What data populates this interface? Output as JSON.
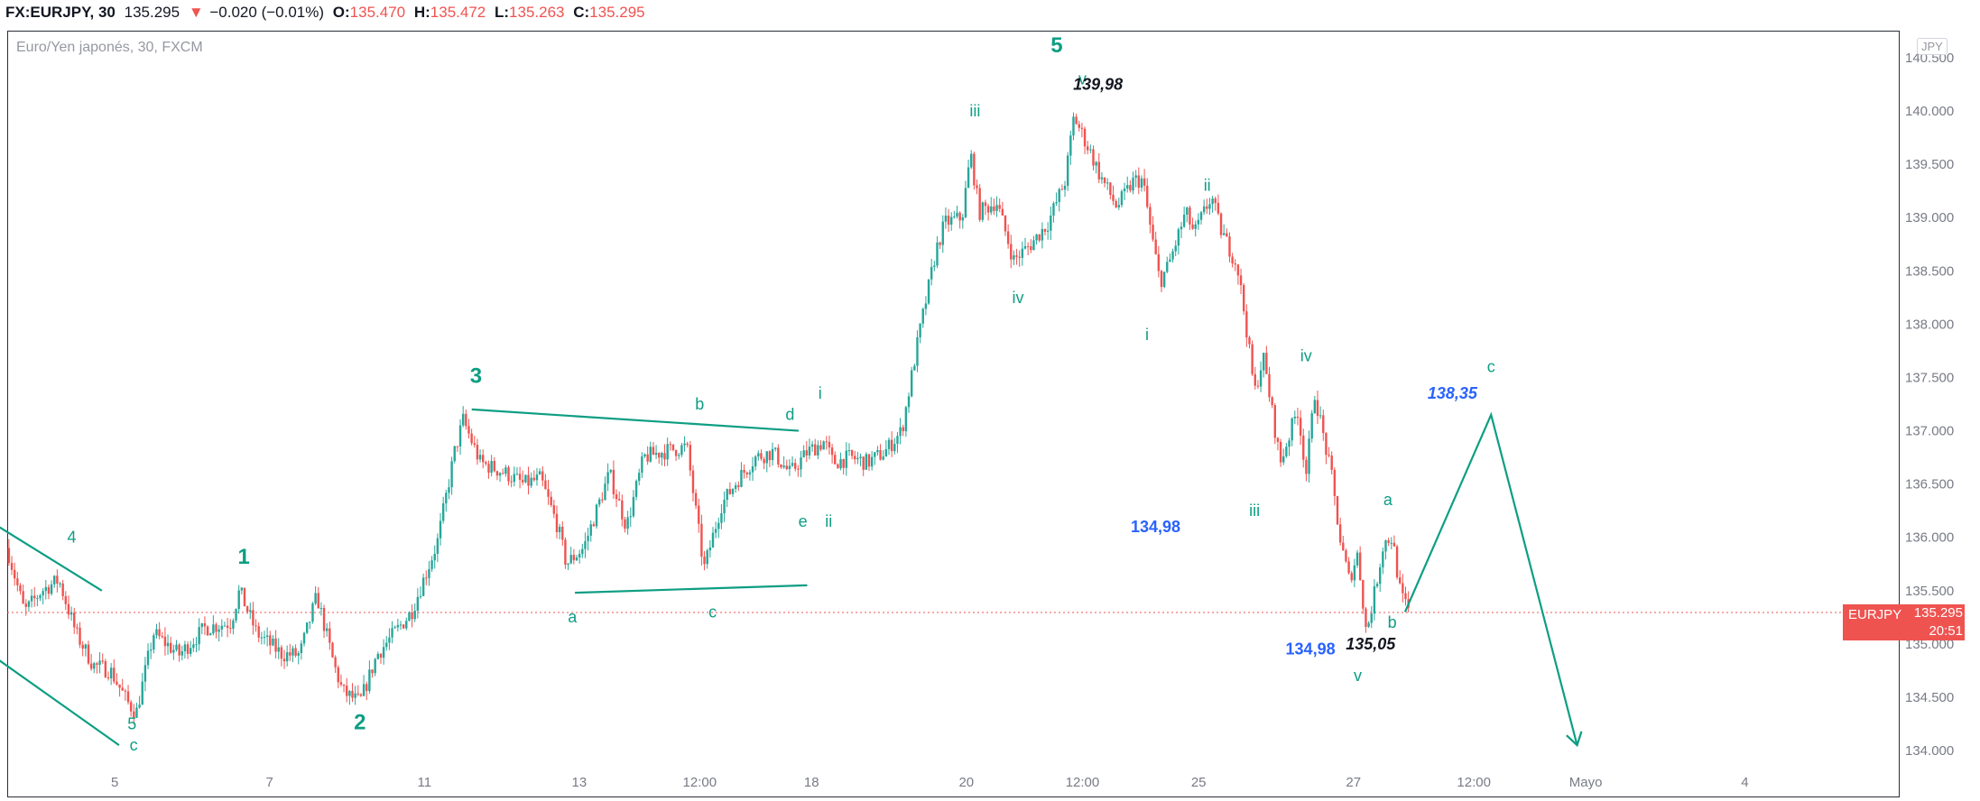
{
  "header": {
    "symbol": "FX:EURJPY, 30",
    "last": "135.295",
    "arrow": "▼",
    "change": "−0.020 (−0.01%)",
    "o_label": "O:",
    "o_value": "135.470",
    "h_label": "H:",
    "h_value": "135.472",
    "l_label": "L:",
    "l_value": "135.263",
    "c_label": "C:",
    "c_value": "135.295"
  },
  "watermark": "Euro/Yen japonés, 30, FXCM",
  "currency_badge": "JPY",
  "price_tag": {
    "symbol": "EURJPY",
    "value": "135.295",
    "countdown": "20:51"
  },
  "colors": {
    "up": "#26a69a",
    "down": "#ef5350",
    "wave": "#0d9e83",
    "note_blue": "#2962ff"
  },
  "chart_data": {
    "type": "candlestick",
    "title": "Euro/Yen japonés, 30, FXCM",
    "ylim": [
      133.7,
      140.7
    ],
    "yticks": [
      "134.000",
      "134.500",
      "135.000",
      "135.500",
      "136.000",
      "136.500",
      "137.000",
      "137.500",
      "138.000",
      "138.500",
      "139.000",
      "139.500",
      "140.000",
      "140.500"
    ],
    "ytick_values": [
      134.0,
      134.5,
      135.0,
      135.5,
      136.0,
      136.5,
      137.0,
      137.5,
      138.0,
      138.5,
      139.0,
      139.5,
      140.0,
      140.5
    ],
    "xlim": [
      0,
      220
    ],
    "xticks": [
      {
        "label": "5",
        "t": 12.5
      },
      {
        "label": "7",
        "t": 30.5
      },
      {
        "label": "11",
        "t": 48.5
      },
      {
        "label": "13",
        "t": 66.5
      },
      {
        "label": "12:00",
        "t": 80.5
      },
      {
        "label": "18",
        "t": 93.5
      },
      {
        "label": "20",
        "t": 111.5
      },
      {
        "label": "12:00",
        "t": 125
      },
      {
        "label": "25",
        "t": 138.5
      },
      {
        "label": "27",
        "t": 156.5
      },
      {
        "label": "12:00",
        "t": 170.5
      },
      {
        "label": "Mayo",
        "t": 183.5
      },
      {
        "label": "4",
        "t": 202
      }
    ],
    "last_price": 135.295,
    "anchors": [
      [
        0,
        135.9
      ],
      [
        2,
        135.3
      ],
      [
        4,
        135.5
      ],
      [
        6,
        135.6
      ],
      [
        8,
        135.1
      ],
      [
        10,
        134.8
      ],
      [
        12,
        134.75
      ],
      [
        14,
        134.45
      ],
      [
        15,
        134.35
      ],
      [
        17,
        135.1
      ],
      [
        20,
        134.9
      ],
      [
        23,
        135.15
      ],
      [
        26,
        135.2
      ],
      [
        27,
        135.5
      ],
      [
        29,
        135.1
      ],
      [
        32,
        134.9
      ],
      [
        34,
        134.9
      ],
      [
        36,
        135.45
      ],
      [
        38,
        134.8
      ],
      [
        39,
        134.55
      ],
      [
        41,
        134.45
      ],
      [
        43,
        134.9
      ],
      [
        45,
        135.1
      ],
      [
        47,
        135.3
      ],
      [
        50,
        135.95
      ],
      [
        52,
        136.8
      ],
      [
        53,
        137.1
      ],
      [
        55,
        136.7
      ],
      [
        58,
        136.6
      ],
      [
        60,
        136.5
      ],
      [
        62,
        136.55
      ],
      [
        64,
        136.1
      ],
      [
        65,
        135.75
      ],
      [
        67,
        135.9
      ],
      [
        70,
        136.6
      ],
      [
        72,
        136.1
      ],
      [
        74,
        136.75
      ],
      [
        76,
        136.8
      ],
      [
        79,
        136.85
      ],
      [
        81,
        135.7
      ],
      [
        83,
        136.3
      ],
      [
        85,
        136.55
      ],
      [
        87,
        136.75
      ],
      [
        89,
        136.8
      ],
      [
        91,
        136.6
      ],
      [
        93,
        136.8
      ],
      [
        95,
        136.9
      ],
      [
        96,
        136.7
      ],
      [
        98,
        136.75
      ],
      [
        100,
        136.7
      ],
      [
        102,
        136.8
      ],
      [
        104,
        137.0
      ],
      [
        106,
        137.9
      ],
      [
        108,
        138.7
      ],
      [
        109,
        138.95
      ],
      [
        111,
        139.0
      ],
      [
        112,
        139.6
      ],
      [
        113,
        139.05
      ],
      [
        115,
        139.15
      ],
      [
        117,
        138.6
      ],
      [
        119,
        138.75
      ],
      [
        121,
        138.95
      ],
      [
        123,
        139.35
      ],
      [
        124,
        139.95
      ],
      [
        126,
        139.6
      ],
      [
        127,
        139.4
      ],
      [
        129,
        139.1
      ],
      [
        131,
        139.35
      ],
      [
        132,
        139.35
      ],
      [
        133,
        138.85
      ],
      [
        134,
        138.4
      ],
      [
        135,
        138.55
      ],
      [
        137,
        139.05
      ],
      [
        138,
        138.85
      ],
      [
        140,
        139.2
      ],
      [
        141,
        138.9
      ],
      [
        143,
        138.55
      ],
      [
        144,
        138.0
      ],
      [
        145,
        137.35
      ],
      [
        146,
        137.7
      ],
      [
        148,
        136.7
      ],
      [
        150,
        137.2
      ],
      [
        151,
        136.6
      ],
      [
        152,
        137.35
      ],
      [
        154,
        136.55
      ],
      [
        155,
        135.95
      ],
      [
        156,
        135.6
      ],
      [
        157,
        135.85
      ],
      [
        158,
        135.1
      ],
      [
        159,
        135.5
      ],
      [
        160,
        135.95
      ],
      [
        161,
        136.0
      ],
      [
        162,
        135.45
      ],
      [
        163,
        135.3
      ]
    ],
    "trendlines": [
      {
        "name": "wedge-upper-left",
        "points": [
          [
            -1,
            136.1
          ],
          [
            11,
            135.5
          ]
        ]
      },
      {
        "name": "wedge-lower-left",
        "points": [
          [
            -1,
            134.85
          ],
          [
            13,
            134.05
          ]
        ]
      },
      {
        "name": "triangle-upper",
        "points": [
          [
            54,
            137.2
          ],
          [
            92,
            137.0
          ]
        ]
      },
      {
        "name": "triangle-lower",
        "points": [
          [
            66,
            135.48
          ],
          [
            93,
            135.55
          ]
        ]
      },
      {
        "name": "projection",
        "points": [
          [
            162.5,
            135.3
          ],
          [
            172.5,
            137.15
          ],
          [
            182.5,
            134.05
          ]
        ]
      }
    ],
    "wave_labels": [
      {
        "text": "4",
        "size": "big-sm",
        "t": 7.5,
        "p": 135.95
      },
      {
        "text": "5",
        "size": "sm",
        "t": 14.5,
        "p": 134.2
      },
      {
        "text": "c",
        "size": "sm",
        "t": 14.7,
        "p": 134.0
      },
      {
        "text": "1",
        "size": "big",
        "t": 27.5,
        "p": 135.75
      },
      {
        "text": "2",
        "size": "big",
        "t": 41,
        "p": 134.2
      },
      {
        "text": "3",
        "size": "big",
        "t": 54.5,
        "p": 137.45
      },
      {
        "text": "b",
        "size": "sm",
        "t": 80.5,
        "p": 137.2
      },
      {
        "text": "d",
        "size": "sm",
        "t": 91,
        "p": 137.1
      },
      {
        "text": "i",
        "size": "sm",
        "t": 94.5,
        "p": 137.3
      },
      {
        "text": "a",
        "size": "sm",
        "t": 65.7,
        "p": 135.2
      },
      {
        "text": "c",
        "size": "sm",
        "t": 82,
        "p": 135.25
      },
      {
        "text": "e",
        "size": "sm",
        "t": 92.5,
        "p": 136.1
      },
      {
        "text": "ii",
        "size": "sm",
        "t": 95.5,
        "p": 136.1
      },
      {
        "text": "iii",
        "size": "sm",
        "t": 112.5,
        "p": 139.95
      },
      {
        "text": "iv",
        "size": "sm",
        "t": 117.5,
        "p": 138.2
      },
      {
        "text": "5",
        "size": "big",
        "t": 122,
        "p": 140.55
      },
      {
        "text": "v",
        "size": "sm",
        "t": 125,
        "p": 140.25
      },
      {
        "text": "i",
        "size": "sm",
        "t": 132.5,
        "p": 137.85
      },
      {
        "text": "ii",
        "size": "sm",
        "t": 139.5,
        "p": 139.25
      },
      {
        "text": "iv",
        "size": "sm",
        "t": 151,
        "p": 137.65
      },
      {
        "text": "iii",
        "size": "sm",
        "t": 145,
        "p": 136.2
      },
      {
        "text": "a",
        "size": "sm",
        "t": 160.5,
        "p": 136.3
      },
      {
        "text": "b",
        "size": "sm",
        "t": 161,
        "p": 135.15
      },
      {
        "text": "v",
        "size": "sm",
        "t": 157,
        "p": 134.65
      },
      {
        "text": "c",
        "size": "sm",
        "t": 172.5,
        "p": 137.55
      }
    ],
    "price_notes": [
      {
        "text": "139,98",
        "style": "black",
        "t": 126.8,
        "p": 140.2
      },
      {
        "text": "134,98",
        "style": "blue",
        "t": 133.5,
        "p": 136.05
      },
      {
        "text": "134,98",
        "style": "blue",
        "t": 151.5,
        "p": 134.9
      },
      {
        "text": "135,05",
        "style": "black",
        "t": 158.5,
        "p": 134.95
      },
      {
        "text": "138,35",
        "style": "blue-italic",
        "t": 168,
        "p": 137.3
      }
    ]
  }
}
